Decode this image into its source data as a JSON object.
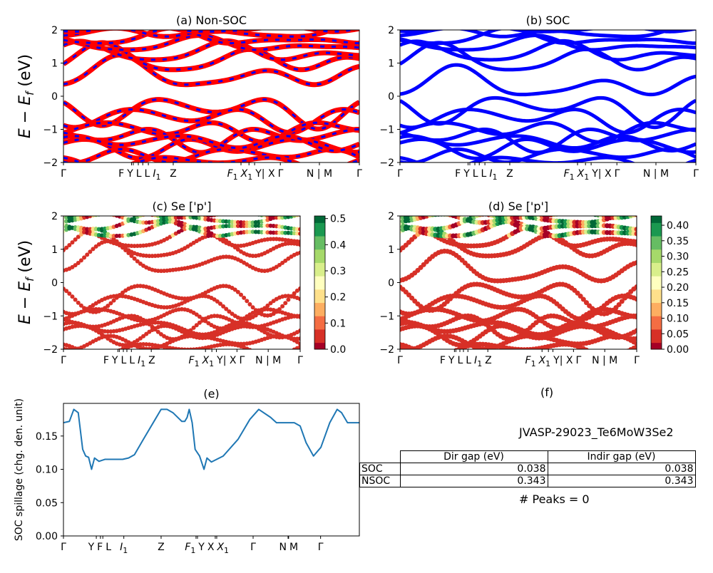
{
  "chart_data": [
    {
      "type": "line",
      "panel": "a",
      "title": "(a) Non-SOC",
      "ylabel": "E − E_f (eV)",
      "ylim": [
        -2,
        2
      ],
      "yticks": [
        -2,
        -1,
        0,
        1,
        2
      ],
      "xticks": [
        "Γ",
        "F",
        "Y",
        "L",
        "L",
        "I_1",
        "Z",
        "F_1",
        "X_1",
        "Y| X",
        "Γ",
        "N | M",
        "Γ"
      ],
      "xtick_pos": [
        0,
        0.23,
        0.236,
        0.253,
        0.268,
        0.287,
        0.371,
        0.6,
        0.627,
        0.646,
        0.733,
        0.865,
        1
      ],
      "series": [
        {
          "color": "#ff0000"
        },
        {
          "color": "#0000ff",
          "style": "dashed"
        }
      ],
      "gap_eV": 0.343
    },
    {
      "type": "line",
      "panel": "b",
      "title": "(b) SOC",
      "ylim": [
        -2,
        2
      ],
      "yticks": [
        -2,
        -1,
        0,
        1,
        2
      ],
      "xticks": [
        "Γ",
        "F",
        "Y",
        "L",
        "L",
        "I_1",
        "Z",
        "F_1",
        "X_1",
        "Y| X",
        "Γ",
        "N | M",
        "Γ"
      ],
      "xtick_pos": [
        0,
        0.23,
        0.236,
        0.253,
        0.268,
        0.287,
        0.371,
        0.6,
        0.627,
        0.646,
        0.733,
        0.865,
        1
      ],
      "series": [
        {
          "color": "#0000ff"
        }
      ],
      "gap_eV": 0.038
    },
    {
      "type": "scatter",
      "panel": "c",
      "title": "(c)  Se ['p']",
      "ylabel": "E − E_f (eV)",
      "ylim": [
        -2,
        2
      ],
      "yticks": [
        -2,
        -1,
        0,
        1,
        2
      ],
      "xticks": [
        "Γ",
        "F",
        "Y",
        "L",
        "L",
        "I_1",
        "Z",
        "F_1",
        "X_1",
        "Y| X",
        "Γ",
        "N | M",
        "Γ"
      ],
      "colorbar": {
        "colormap": "RdYlGn",
        "range": [
          0,
          0.51
        ],
        "ticks": [
          "0.0",
          "0.1",
          "0.2",
          "0.3",
          "0.4",
          "0.5"
        ]
      }
    },
    {
      "type": "scatter",
      "panel": "d",
      "title": "(d) Se ['p']",
      "ylim": [
        -2,
        2
      ],
      "yticks": [
        -2,
        -1,
        0,
        1,
        2
      ],
      "xticks": [
        "Γ",
        "F",
        "Y",
        "L",
        "L",
        "I_1",
        "Z",
        "F_1",
        "X_1",
        "Y| X",
        "Γ",
        "N | M",
        "Γ"
      ],
      "colorbar": {
        "colormap": "RdYlGn",
        "range": [
          0,
          0.43
        ],
        "ticks": [
          "0.00",
          "0.05",
          "0.10",
          "0.15",
          "0.20",
          "0.25",
          "0.30",
          "0.35",
          "0.40"
        ]
      }
    },
    {
      "type": "line",
      "panel": "e",
      "title": "(e)",
      "ylabel": "SOC spillage (chg. den. unit)",
      "ylim": [
        0,
        0.199
      ],
      "yticks": [
        "0.00",
        "0.05",
        "0.10",
        "0.15"
      ],
      "xticks": [
        "Γ",
        "Y",
        "F",
        "L",
        "I_1",
        "Z",
        "F_1",
        "Y",
        "X",
        "X_1",
        "Γ",
        "N",
        "M",
        "Γ"
      ],
      "xtick_pos": [
        0,
        0.111,
        0.125,
        0.133,
        0.204,
        0.33,
        0.448,
        0.453,
        0.513,
        0.518,
        0.641,
        0.759,
        0.761,
        0.869
      ],
      "color": "#1f77b4",
      "x": [
        0,
        0.02,
        0.035,
        0.05,
        0.065,
        0.075,
        0.085,
        0.095,
        0.105,
        0.12,
        0.14,
        0.2,
        0.22,
        0.24,
        0.27,
        0.31,
        0.33,
        0.35,
        0.37,
        0.4,
        0.41,
        0.418,
        0.425,
        0.435,
        0.445,
        0.46,
        0.475,
        0.485,
        0.5,
        0.54,
        0.59,
        0.63,
        0.66,
        0.7,
        0.72,
        0.78,
        0.8,
        0.82,
        0.845,
        0.87,
        0.9,
        0.925,
        0.94,
        0.96,
        1.0
      ],
      "y": [
        0.17,
        0.172,
        0.19,
        0.185,
        0.13,
        0.12,
        0.118,
        0.1,
        0.117,
        0.112,
        0.115,
        0.115,
        0.117,
        0.122,
        0.145,
        0.175,
        0.19,
        0.19,
        0.185,
        0.172,
        0.172,
        0.178,
        0.19,
        0.17,
        0.13,
        0.12,
        0.1,
        0.117,
        0.111,
        0.12,
        0.145,
        0.175,
        0.19,
        0.178,
        0.17,
        0.17,
        0.165,
        0.14,
        0.12,
        0.133,
        0.17,
        0.19,
        0.185,
        0.17,
        0.17
      ]
    }
  ],
  "panel_f": {
    "title": "(f)",
    "material": "JVASP-29023_Te6MoW3Se2",
    "table": {
      "headers": [
        "",
        "Dir gap (eV)",
        "Indir gap (eV)"
      ],
      "rows": [
        [
          "SOC",
          "0.038",
          "0.038"
        ],
        [
          "NSOC",
          "0.343",
          "0.343"
        ]
      ]
    },
    "peaks": "# Peaks = 0"
  }
}
